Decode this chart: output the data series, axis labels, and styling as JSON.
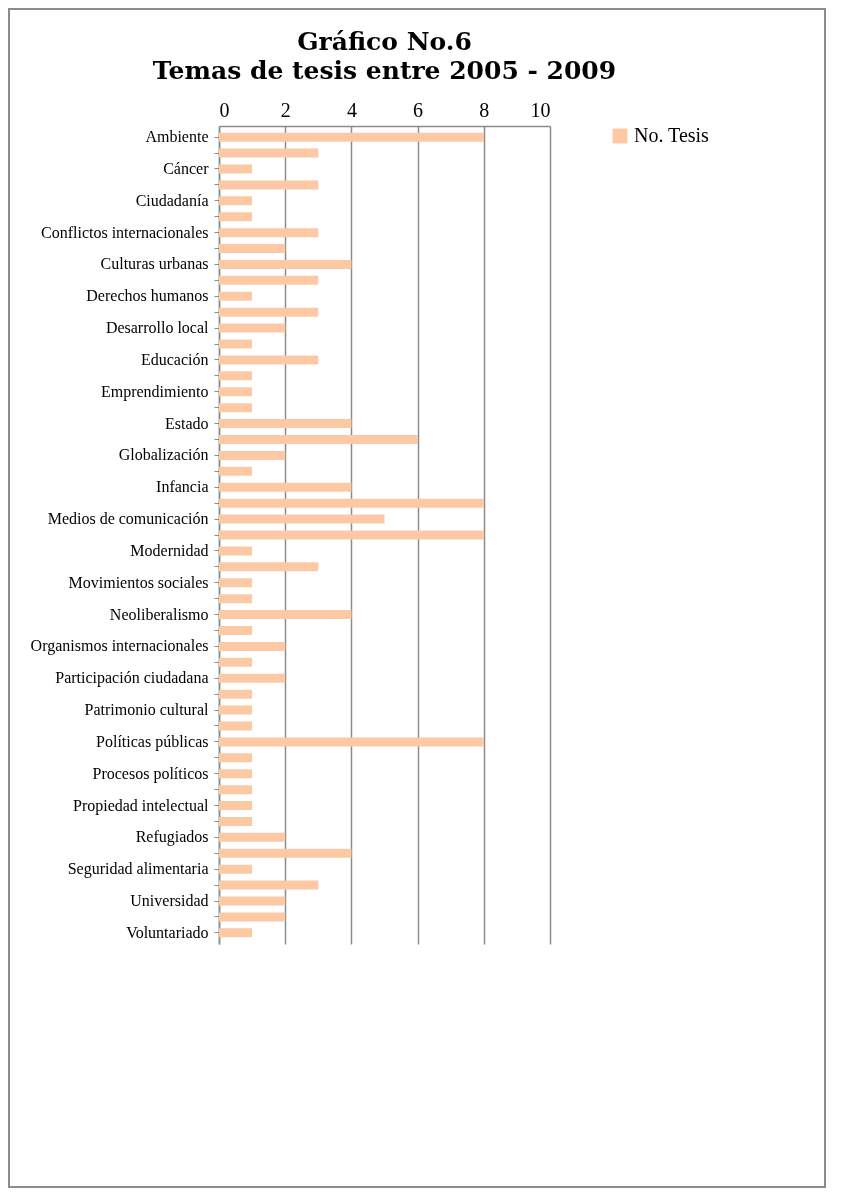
{
  "chart_data": {
    "type": "bar",
    "orientation": "horizontal",
    "title": "Gráfico No.6",
    "subtitle": "Temas de tesis entre 2005 - 2009",
    "categories": [
      "Ambiente",
      null,
      "Cáncer",
      null,
      "Ciudadanía",
      null,
      "Conflictos internacionales",
      null,
      "Culturas urbanas",
      null,
      "Derechos humanos",
      null,
      "Desarrollo local",
      null,
      "Educación",
      null,
      "Emprendimiento",
      null,
      "Estado",
      null,
      "Globalización",
      null,
      "Infancia",
      null,
      "Medios de comunicación",
      null,
      "Modernidad",
      null,
      "Movimientos sociales",
      null,
      "Neoliberalismo",
      null,
      "Organismos internacionales",
      null,
      "Participación ciudadana",
      null,
      "Patrimonio cultural",
      null,
      "Políticas públicas",
      null,
      "Procesos políticos",
      null,
      "Propiedad intelectual",
      null,
      "Refugiados",
      null,
      "Seguridad alimentaria",
      null,
      "Universidad",
      null,
      "Voluntariado"
    ],
    "series": [
      {
        "name": "No. Tesis",
        "color": "#fcc9a4",
        "values": [
          8,
          3,
          1,
          3,
          1,
          1,
          3,
          2,
          4,
          3,
          1,
          3,
          2,
          1,
          3,
          1,
          1,
          1,
          4,
          6,
          2,
          1,
          4,
          8,
          5,
          8,
          1,
          3,
          1,
          1,
          4,
          1,
          2,
          1,
          2,
          1,
          1,
          1,
          8,
          1,
          1,
          1,
          1,
          1,
          2,
          4,
          1,
          3,
          2,
          2,
          1
        ]
      }
    ],
    "xlim": [
      0,
      10
    ],
    "xticks": [
      0,
      2,
      4,
      6,
      8,
      10
    ],
    "grid": "x",
    "legend": "right"
  }
}
